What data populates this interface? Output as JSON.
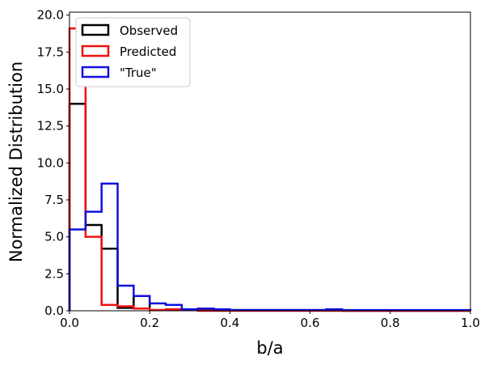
{
  "chart_data": {
    "type": "step histogram",
    "xlabel": "b/a",
    "ylabel": "Normalized Distribution",
    "xlim": [
      0,
      1
    ],
    "ylim": [
      0,
      20.2
    ],
    "x_ticks": [
      "0.0",
      "0.2",
      "0.4",
      "0.6",
      "0.8",
      "1.0"
    ],
    "y_ticks": [
      "0.0",
      "2.5",
      "5.0",
      "7.5",
      "10.0",
      "12.5",
      "15.0",
      "17.5",
      "20.0"
    ],
    "bin_edges": [
      0,
      0.04,
      0.08,
      0.12,
      0.16,
      0.2,
      0.24,
      0.28,
      0.32,
      0.36,
      0.4,
      0.44,
      0.48,
      0.52,
      0.56,
      0.6,
      0.64,
      0.68,
      0.72,
      0.76,
      0.8,
      0.84,
      0.88,
      0.92,
      0.96,
      1.0
    ],
    "legend_position": "top-left",
    "series": [
      {
        "name": "Observed",
        "color": "#000000",
        "values": [
          14.0,
          5.8,
          4.2,
          0.2,
          1.0,
          0.05,
          0.05,
          0.05,
          0.05,
          0.05,
          0.05,
          0.05,
          0.05,
          0.05,
          0.05,
          0.05,
          0.05,
          0,
          0,
          0,
          0,
          0,
          0,
          0,
          0
        ]
      },
      {
        "name": "Predicted",
        "color": "#ee1111",
        "values": [
          19.1,
          5.0,
          0.4,
          0.3,
          0.15,
          0.05,
          0.1,
          0.05,
          0.0,
          0.0,
          0.0,
          0.0,
          0,
          0,
          0,
          0,
          0,
          0,
          0,
          0,
          0,
          0,
          0,
          0,
          0
        ]
      },
      {
        "name": "\"True\"",
        "color": "#1111dd",
        "values": [
          5.5,
          6.7,
          8.6,
          1.7,
          1.0,
          0.5,
          0.4,
          0.1,
          0.15,
          0.1,
          0.05,
          0.05,
          0.05,
          0.05,
          0.05,
          0.05,
          0.1,
          0.05,
          0.05,
          0.05,
          0.05,
          0.05,
          0.05,
          0.05,
          0.05
        ]
      }
    ]
  }
}
